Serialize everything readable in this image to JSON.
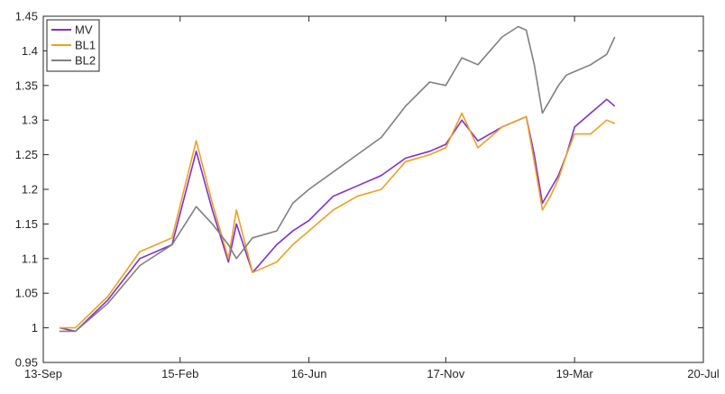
{
  "chart_data": {
    "type": "line",
    "title": "",
    "xlabel": "",
    "ylabel": "",
    "x_ticks": [
      "13-Sep",
      "15-Feb",
      "16-Jun",
      "17-Nov",
      "19-Mar",
      "20-Jul"
    ],
    "y_ticks": [
      "0.95",
      "1",
      "1.05",
      "1.1",
      "1.15",
      "1.2",
      "1.25",
      "1.3",
      "1.35",
      "1.4",
      "1.45"
    ],
    "ylim": [
      0.95,
      1.45
    ],
    "grid": false,
    "legend_position": "top-left",
    "x": [
      "13-Nov",
      "14-Jan",
      "14-May",
      "14-Sep",
      "15-Jan",
      "15-Apr",
      "15-Jun",
      "15-Aug",
      "15-Sep",
      "15-Nov",
      "16-Feb",
      "16-Apr",
      "16-Jun",
      "16-Sep",
      "16-Dec",
      "17-Mar",
      "17-Jun",
      "17-Sep",
      "17-Nov",
      "18-Jan",
      "18-Mar",
      "18-Jun",
      "18-Aug",
      "18-Sep",
      "18-Oct",
      "18-Nov",
      "18-Dec",
      "19-Jan",
      "19-Feb",
      "19-Mar",
      "19-May",
      "19-Jul",
      "19-Aug"
    ],
    "series": [
      {
        "name": "MV",
        "color": "#7E2FD8",
        "values": [
          1.0,
          0.995,
          1.04,
          1.1,
          1.12,
          1.255,
          1.17,
          1.095,
          1.15,
          1.08,
          1.12,
          1.14,
          1.155,
          1.19,
          1.205,
          1.22,
          1.245,
          1.255,
          1.265,
          1.3,
          1.27,
          1.29,
          1.3,
          1.305,
          1.25,
          1.18,
          1.2,
          1.22,
          1.25,
          1.29,
          1.31,
          1.33,
          1.32
        ]
      },
      {
        "name": "BL1",
        "color": "#EDA122",
        "values": [
          1.0,
          1.0,
          1.045,
          1.11,
          1.13,
          1.27,
          1.18,
          1.1,
          1.17,
          1.08,
          1.095,
          1.12,
          1.14,
          1.17,
          1.19,
          1.2,
          1.24,
          1.25,
          1.26,
          1.31,
          1.26,
          1.29,
          1.3,
          1.305,
          1.24,
          1.17,
          1.19,
          1.215,
          1.25,
          1.28,
          1.28,
          1.3,
          1.295
        ]
      },
      {
        "name": "BL2",
        "color": "#808080",
        "values": [
          0.995,
          0.995,
          1.035,
          1.09,
          1.12,
          1.175,
          1.15,
          1.12,
          1.1,
          1.13,
          1.14,
          1.18,
          1.2,
          1.225,
          1.25,
          1.275,
          1.32,
          1.355,
          1.35,
          1.39,
          1.38,
          1.42,
          1.435,
          1.43,
          1.38,
          1.31,
          1.33,
          1.35,
          1.365,
          1.37,
          1.38,
          1.395,
          1.42
        ]
      }
    ]
  }
}
